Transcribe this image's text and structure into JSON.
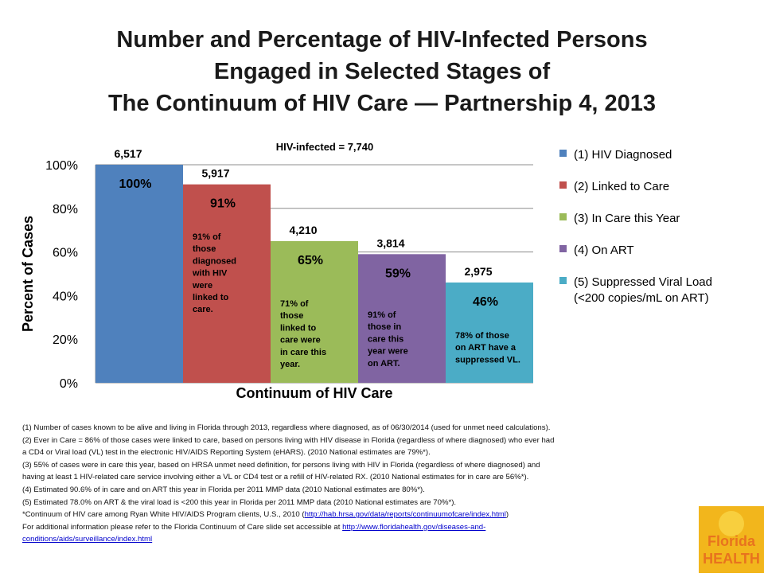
{
  "title_lines": [
    "Number and Percentage of HIV-Infected Persons",
    "Engaged in Selected Stages of",
    "The Continuum of HIV Care — Partnership 4, 2013"
  ],
  "chart_data": {
    "type": "bar",
    "annotation_total": "HIV-infected = 7,740",
    "xlabel": "Continuum of HIV Care",
    "ylabel": "Percent of Cases",
    "ylim": [
      0,
      100
    ],
    "yticks": [
      "0%",
      "20%",
      "40%",
      "60%",
      "80%",
      "100%"
    ],
    "grid": true,
    "legend_position": "right",
    "series": [
      {
        "name": "(1) HIV Diagnosed",
        "legend_lines": [
          "(1) HIV Diagnosed"
        ],
        "value": 100,
        "count_label": "6,517",
        "pct_label": "100%",
        "note_lines": [],
        "color": "#4f81bd"
      },
      {
        "name": "(2) Linked to Care",
        "legend_lines": [
          "(2) Linked to Care"
        ],
        "value": 91,
        "count_label": "5,917",
        "pct_label": "91%",
        "note_lines": [
          "91% of",
          "those",
          "diagnosed",
          "with HIV",
          "were",
          "linked to",
          "care."
        ],
        "color": "#c0504d"
      },
      {
        "name": "(3) In Care this Year",
        "legend_lines": [
          "(3) In Care this Year"
        ],
        "value": 65,
        "count_label": "4,210",
        "pct_label": "65%",
        "note_lines": [
          "71% of",
          "those",
          "linked to",
          "care were",
          "in care this",
          "year."
        ],
        "color": "#9bbb59"
      },
      {
        "name": "(4) On ART",
        "legend_lines": [
          "(4) On ART"
        ],
        "value": 59,
        "count_label": "3,814",
        "pct_label": "59%",
        "note_lines": [
          "91% of",
          "those in",
          "care this",
          "year were",
          "on ART."
        ],
        "color": "#8064a2"
      },
      {
        "name": "(5) Suppressed Viral Load (<200 copies/mL on ART)",
        "legend_lines": [
          "(5) Suppressed Viral Load",
          "(<200 copies/mL on ART)"
        ],
        "value": 46,
        "count_label": "2,975",
        "pct_label": "46%",
        "note_lines": [
          "78% of those",
          "on ART have a",
          "suppressed VL."
        ],
        "color": "#4bacc6"
      }
    ]
  },
  "footnotes": {
    "lines": [
      "(1) Number of cases known to be alive and living in Florida through 2013, regardless where diagnosed, as of 06/30/2014 (used for unmet need calculations).",
      "(2) Ever in Care = 86% of those cases were linked to care, based on persons living with HIV disease in Florida (regardless of where diagnosed) who ever had",
      "a CD4 or Viral load (VL) test in the electronic HIV/AIDS Reporting System (eHARS). (2010 National estimates are 79%*).",
      "(3) 55% of cases were in care this year, based on HRSA unmet need definition, for persons living with HIV in Florida (regardless of where diagnosed) and",
      "having at least 1 HIV-related care service involving either a VL or CD4 test or a refill of HIV-related RX.  (2010 National estimates for in care are 56%*).",
      "(4) Estimated 90.6% of in care and on ART this year in Florida per 2011 MMP data (2010 National estimates are 80%*).",
      "(5) Estimated 78.0% on ART & the viral load is <200 this year in Florida per 2011 MMP data  (2010 National estimates are 70%*)."
    ],
    "continuum_prefix": "*Continuum of HIV care among Ryan White HIV/AIDS Program clients, U.S., 2010  (",
    "continuum_link": "http://hab.hrsa.gov/data/reports/continuumofcare/index.html",
    "continuum_suffix": ")",
    "more_prefix": "For additional information please refer to the Florida Continuum of Care slide set accessible at  ",
    "more_link_part1": "http://www.floridahealth.gov/diseases-and-",
    "more_link_part2": "conditions/aids/surveillance/index.html"
  },
  "logo": {
    "line1": "Florida",
    "line2": "HEALTH",
    "sun_color": "#f2b61c",
    "orange": "#e8731e"
  }
}
